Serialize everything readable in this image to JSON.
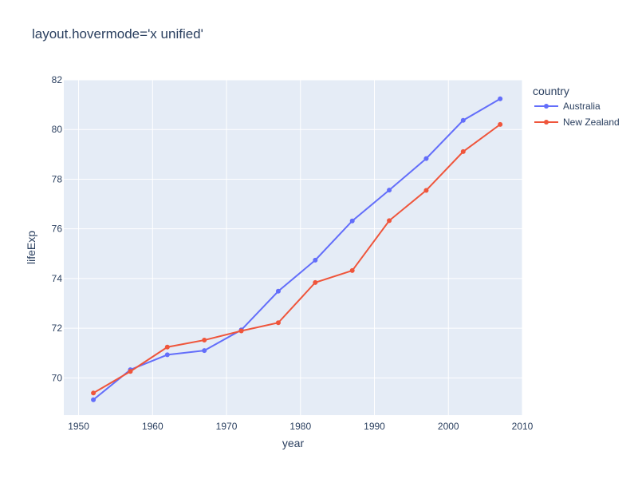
{
  "chart_data": {
    "type": "line",
    "title": "layout.hovermode='x unified'",
    "xlabel": "year",
    "ylabel": "lifeExp",
    "xlim": [
      1948,
      2010
    ],
    "ylim": [
      68.5,
      82
    ],
    "xticks": [
      1950,
      1960,
      1970,
      1980,
      1990,
      2000,
      2010
    ],
    "yticks": [
      70,
      72,
      74,
      76,
      78,
      80,
      82
    ],
    "grid": true,
    "legend_title": "country",
    "legend_position": "top-right",
    "x": [
      1952,
      1957,
      1962,
      1967,
      1972,
      1977,
      1982,
      1987,
      1992,
      1997,
      2002,
      2007
    ],
    "series": [
      {
        "name": "Australia",
        "color": "#636efa",
        "values": [
          69.12,
          70.33,
          70.93,
          71.1,
          71.93,
          73.49,
          74.74,
          76.32,
          77.56,
          78.83,
          80.37,
          81.235
        ]
      },
      {
        "name": "New Zealand",
        "color": "#ef553b",
        "values": [
          69.39,
          70.26,
          71.24,
          71.52,
          71.89,
          72.22,
          73.84,
          74.32,
          76.33,
          77.55,
          79.11,
          80.204
        ]
      }
    ]
  }
}
